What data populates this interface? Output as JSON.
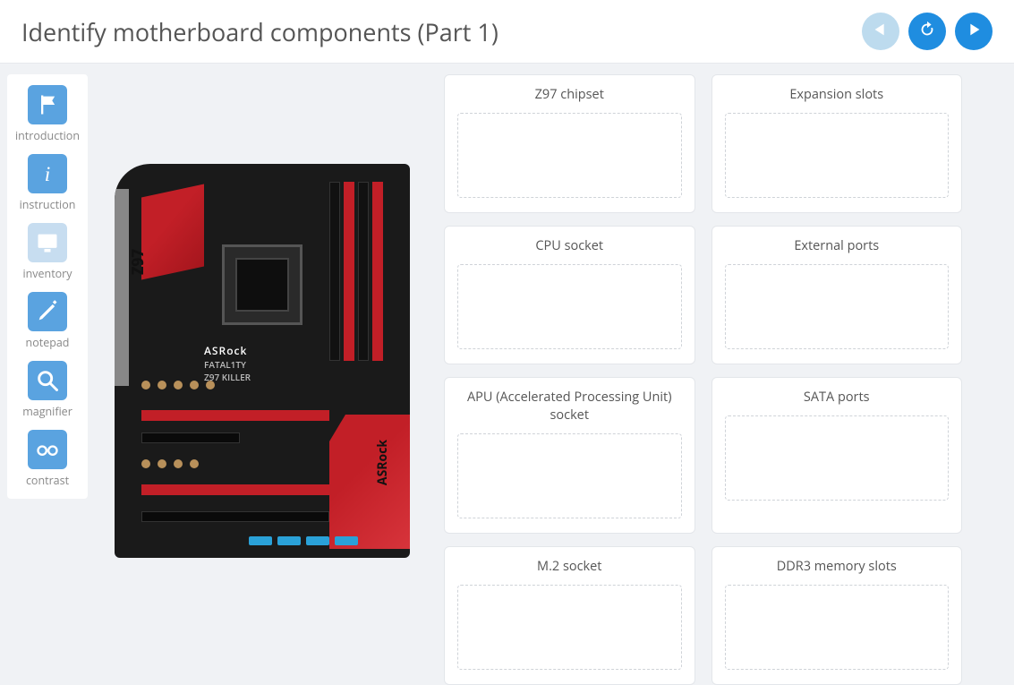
{
  "header": {
    "title": "Identify motherboard components (Part 1)"
  },
  "colors": {
    "page_bg": "#f0f2f5",
    "panel_bg": "#ffffff",
    "accent_blue": "#5aa3e0",
    "accent_blue_strong": "#1f8de0",
    "accent_blue_disabled": "#bddbee",
    "text_muted": "#888888",
    "text_heading": "#555555",
    "drop_border": "#cfd3d8",
    "mobo_red": "#c21f27",
    "mobo_black": "#1a1a1a",
    "sata_blue": "#2aa1d8"
  },
  "sidebar": {
    "items": [
      {
        "id": "introduction",
        "label": "introduction",
        "icon": "flag",
        "enabled": true
      },
      {
        "id": "instruction",
        "label": "instruction",
        "icon": "info",
        "enabled": true
      },
      {
        "id": "inventory",
        "label": "inventory",
        "icon": "monitor",
        "enabled": false
      },
      {
        "id": "notepad",
        "label": "notepad",
        "icon": "pencil",
        "enabled": true
      },
      {
        "id": "magnifier",
        "label": "magnifier",
        "icon": "magnifier",
        "enabled": true
      },
      {
        "id": "contrast",
        "label": "contrast",
        "icon": "glasses",
        "enabled": true
      }
    ]
  },
  "motherboard": {
    "brand_text_top": "ASRock",
    "model_text": "Z97 KILLER",
    "series_text": "FATAL1TY",
    "chipset_mark": "Z97",
    "heatsink_brand": "ASRock"
  },
  "targets": [
    {
      "label": "Z97 chipset"
    },
    {
      "label": "Expansion slots"
    },
    {
      "label": "CPU socket"
    },
    {
      "label": "External ports"
    },
    {
      "label": "APU (Accelerated Processing Unit) socket"
    },
    {
      "label": "SATA ports"
    },
    {
      "label": "M.2 socket"
    },
    {
      "label": "DDR3 memory slots"
    }
  ]
}
